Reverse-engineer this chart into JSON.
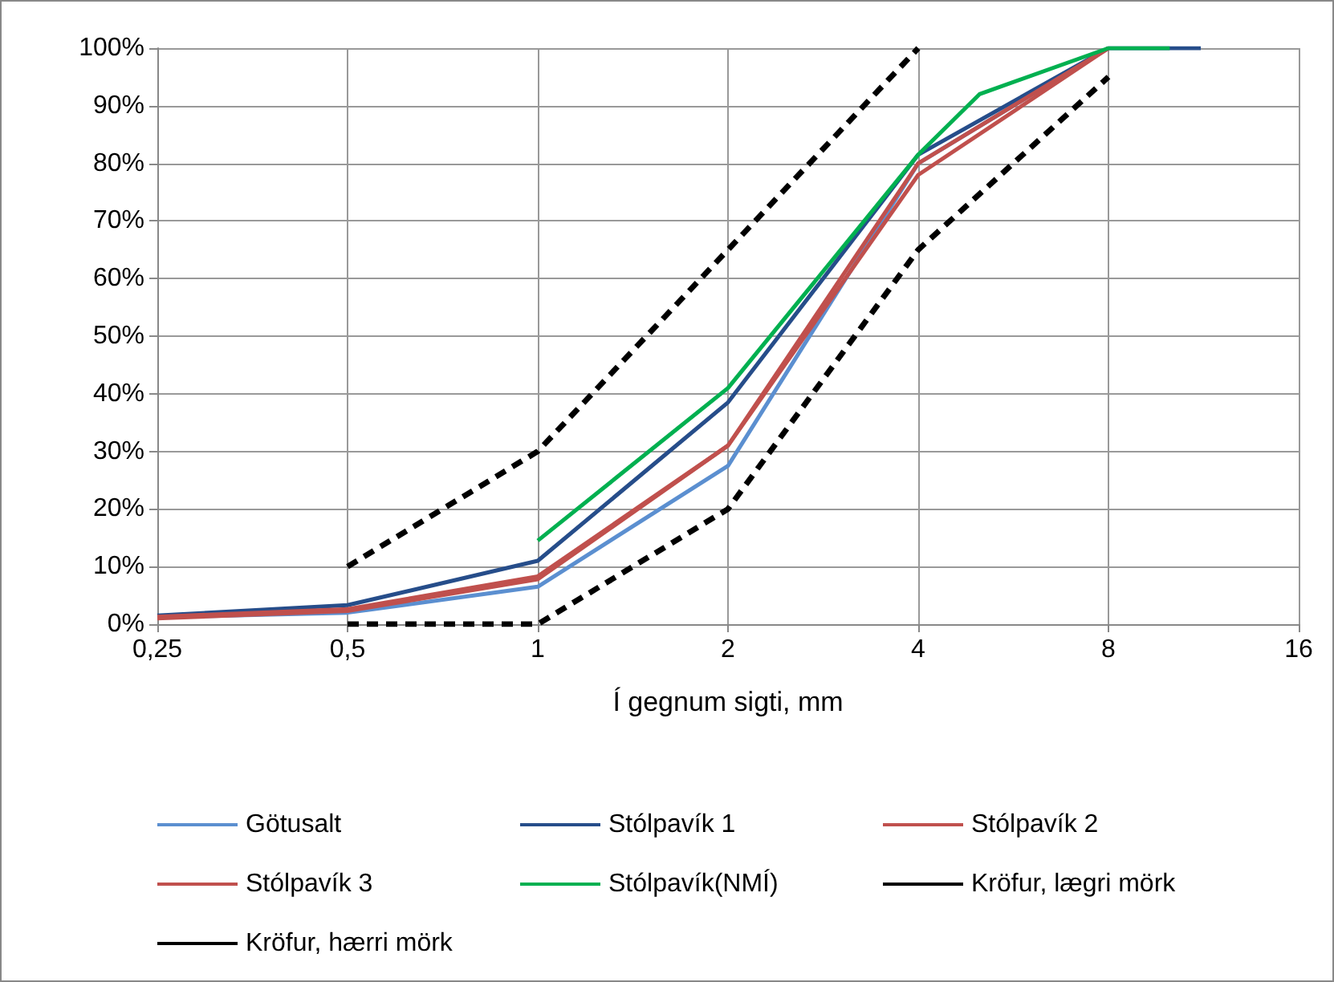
{
  "chart_data": {
    "type": "line",
    "xlabel": "Í gegnum sigti, mm",
    "log": "x",
    "grid": true,
    "legend": "bottom",
    "marker": "none",
    "xlim": [
      0.25,
      16
    ],
    "xticks": [
      {
        "value": 0.25,
        "label": "0,25"
      },
      {
        "value": 0.5,
        "label": "0,5"
      },
      1,
      2,
      4,
      8,
      16
    ],
    "ylim": [
      0,
      100
    ],
    "yticks": [
      {
        "value": 0,
        "label": "0%"
      },
      {
        "value": 10,
        "label": "10%"
      },
      {
        "value": 20,
        "label": "20%"
      },
      {
        "value": 30,
        "label": "30%"
      },
      {
        "value": 40,
        "label": "40%"
      },
      {
        "value": 50,
        "label": "50%"
      },
      {
        "value": 60,
        "label": "60%"
      },
      {
        "value": 70,
        "label": "70%"
      },
      {
        "value": 80,
        "label": "80%"
      },
      {
        "value": 90,
        "label": "90%"
      },
      {
        "value": 100,
        "label": "100%"
      }
    ],
    "series": [
      {
        "name": "Götusalt",
        "color": "#5b8fd0",
        "x": [
          0.25,
          0.5,
          1,
          2,
          4,
          8
        ],
        "values": [
          1.2,
          2,
          6.5,
          27.5,
          80,
          100
        ]
      },
      {
        "name": "Stólpavík 1",
        "color": "#264d8a",
        "x": [
          0.25,
          0.5,
          1,
          2,
          4,
          8,
          11.2
        ],
        "values": [
          1.5,
          3.3,
          11,
          38.5,
          81.5,
          100,
          100
        ]
      },
      {
        "name": "Stólpavík 2",
        "color": "#c0504d",
        "x": [
          0.25,
          0.5,
          1,
          2,
          4,
          8
        ],
        "values": [
          1,
          2.3,
          7.8,
          31,
          78,
          100
        ]
      },
      {
        "name": "Stólpavík 3",
        "color": "#c0504d",
        "x": [
          0.25,
          0.5,
          1,
          2,
          4,
          8
        ],
        "values": [
          1.3,
          2.6,
          8.3,
          31,
          80,
          100
        ]
      },
      {
        "name": "Stólpavík(NMÍ)",
        "color": "#00b050",
        "x": [
          1,
          2,
          4,
          5,
          8,
          10
        ],
        "values": [
          14.5,
          41,
          81.5,
          92,
          100,
          100
        ]
      },
      {
        "name": "Kröfur, lægri mörk",
        "color": "#000000",
        "line_style": "dashed",
        "x": [
          0.5,
          1,
          2,
          4,
          8
        ],
        "values": [
          0,
          0,
          20,
          65,
          95
        ]
      },
      {
        "name": "Kröfur, hærri mörk",
        "color": "#000000",
        "line_style": "dashed",
        "x": [
          0.5,
          1,
          2,
          4
        ],
        "values": [
          10,
          30,
          65,
          100
        ]
      }
    ]
  }
}
